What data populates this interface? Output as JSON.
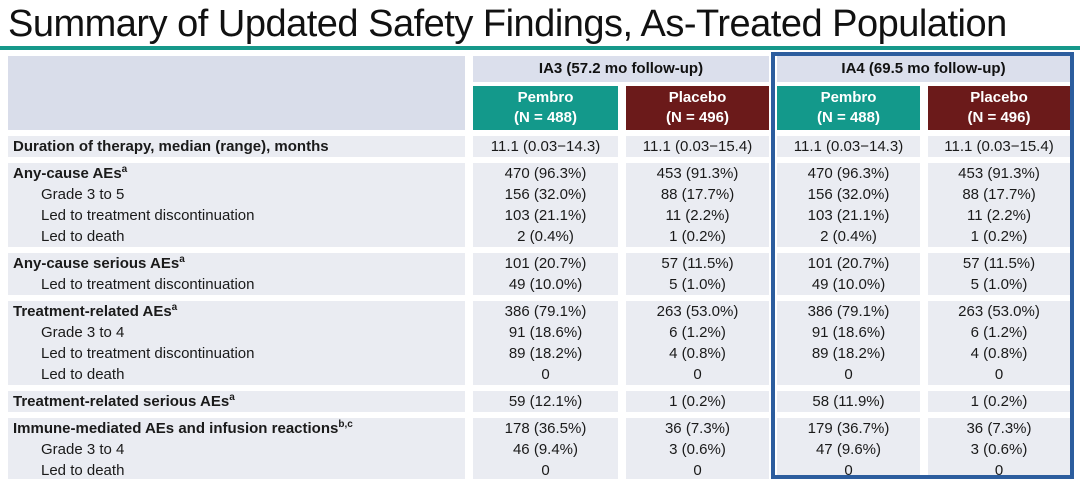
{
  "title": "Summary of Updated Safety Findings, As-Treated Population",
  "colors": {
    "accent_teal": "#13998b",
    "placebo_maroon": "#6b1a1a",
    "ia4_highlight_border": "#2c5d9e",
    "band_background": "#eaecf2",
    "header_band_background": "#dbdfec"
  },
  "table": {
    "column_groups": [
      {
        "label": "IA3 (57.2 mo follow-up)"
      },
      {
        "label": "IA4 (69.5 mo follow-up)"
      }
    ],
    "columns": [
      {
        "name": "Pembro",
        "n": "(N = 488)"
      },
      {
        "name": "Placebo",
        "n": "(N = 496)"
      },
      {
        "name": "Pembro",
        "n": "(N = 488)"
      },
      {
        "name": "Placebo",
        "n": "(N = 496)"
      }
    ],
    "groups": [
      {
        "rows": [
          {
            "label": "Duration of therapy, median (range), months",
            "bold": true,
            "values": [
              "11.1 (0.03−14.3)",
              "11.1 (0.03−15.4)",
              "11.1 (0.03−14.3)",
              "11.1 (0.03−15.4)"
            ]
          }
        ]
      },
      {
        "rows": [
          {
            "label": "Any-cause AEs",
            "sup": "a",
            "bold": true,
            "values": [
              "470 (96.3%)",
              "453 (91.3%)",
              "470 (96.3%)",
              "453 (91.3%)"
            ]
          },
          {
            "label": "Grade 3 to 5",
            "indent": true,
            "values": [
              "156 (32.0%)",
              "88 (17.7%)",
              "156 (32.0%)",
              "88 (17.7%)"
            ]
          },
          {
            "label": "Led to treatment discontinuation",
            "indent": true,
            "values": [
              "103 (21.1%)",
              "11 (2.2%)",
              "103 (21.1%)",
              "11 (2.2%)"
            ]
          },
          {
            "label": "Led to death",
            "indent": true,
            "values": [
              "2 (0.4%)",
              "1 (0.2%)",
              "2 (0.4%)",
              "1 (0.2%)"
            ]
          }
        ]
      },
      {
        "rows": [
          {
            "label": "Any-cause serious AEs",
            "sup": "a",
            "bold": true,
            "values": [
              "101 (20.7%)",
              "57 (11.5%)",
              "101 (20.7%)",
              "57 (11.5%)"
            ]
          },
          {
            "label": "Led to treatment discontinuation",
            "indent": true,
            "values": [
              "49 (10.0%)",
              "5 (1.0%)",
              "49 (10.0%)",
              "5 (1.0%)"
            ]
          }
        ]
      },
      {
        "rows": [
          {
            "label": "Treatment-related AEs",
            "sup": "a",
            "bold": true,
            "values": [
              "386 (79.1%)",
              "263 (53.0%)",
              "386 (79.1%)",
              "263 (53.0%)"
            ]
          },
          {
            "label": "Grade 3 to 4",
            "indent": true,
            "values": [
              "91 (18.6%)",
              "6 (1.2%)",
              "91 (18.6%)",
              "6 (1.2%)"
            ]
          },
          {
            "label": "Led to treatment discontinuation",
            "indent": true,
            "values": [
              "89 (18.2%)",
              "4 (0.8%)",
              "89 (18.2%)",
              "4 (0.8%)"
            ]
          },
          {
            "label": "Led to death",
            "indent": true,
            "values": [
              "0",
              "0",
              "0",
              "0"
            ]
          }
        ]
      },
      {
        "rows": [
          {
            "label": "Treatment-related serious AEs",
            "sup": "a",
            "bold": true,
            "values": [
              "59 (12.1%)",
              "1 (0.2%)",
              "58 (11.9%)",
              "1 (0.2%)"
            ]
          }
        ]
      },
      {
        "rows": [
          {
            "label": "Immune-mediated AEs and infusion reactions",
            "sup": "b,c",
            "bold": true,
            "values": [
              "178 (36.5%)",
              "36 (7.3%)",
              "179 (36.7%)",
              "36 (7.3%)"
            ]
          },
          {
            "label": "Grade 3 to 4",
            "indent": true,
            "values": [
              "46 (9.4%)",
              "3 (0.6%)",
              "47 (9.6%)",
              "3 (0.6%)"
            ]
          },
          {
            "label": "Led to death",
            "indent": true,
            "values": [
              "0",
              "0",
              "0",
              "0"
            ]
          }
        ]
      }
    ]
  }
}
